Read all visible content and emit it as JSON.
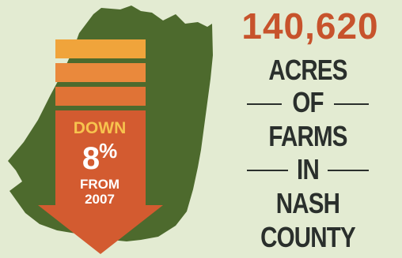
{
  "colors": {
    "background": "#e3ebd2",
    "map_fill": "#4d6a2d",
    "arrow_orange": "#d35b30",
    "band_light": "#f0a43b",
    "band_mid": "#ea893c",
    "band_dark": "#e07336",
    "accent_number": "#c7532c",
    "text_dark": "#2a2f2c",
    "down_text": "#f7c34e"
  },
  "icons": {
    "map": "nash-county-map-icon",
    "arrow": "down-arrow-icon"
  },
  "graphic": {
    "change_direction": "DOWN",
    "change_percent": "8",
    "percent_symbol": "%",
    "from_label": "FROM",
    "base_year": "2007"
  },
  "headline": {
    "number": "140,620",
    "lines": [
      "ACRES",
      "OF",
      "FARMS",
      "IN",
      "NASH",
      "COUNTY"
    ]
  }
}
